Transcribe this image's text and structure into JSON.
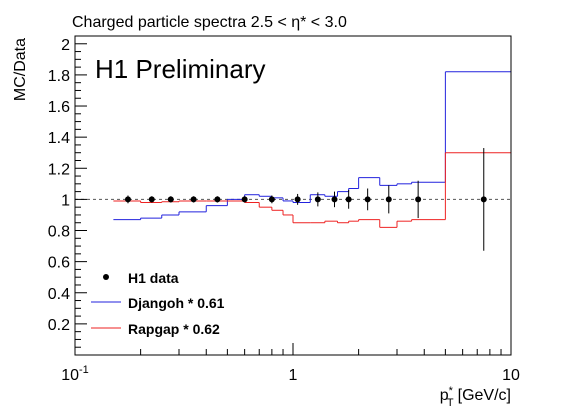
{
  "chart_data": {
    "type": "line",
    "title": "Charged particle spectra 2.5 < η* < 3.0",
    "annotation": "H1 Preliminary",
    "ylabel": "MC/Data",
    "xlabel_main": "p",
    "xlabel_sup": "*",
    "xlabel_sub": "T",
    "xlabel_unit": "[GeV/c]",
    "xscale": "log",
    "xlim": [
      0.1,
      10
    ],
    "ylim": [
      0,
      2.05
    ],
    "grid": false,
    "reference_line": 1,
    "legend_position": "bottom-left",
    "x_ticks": [
      {
        "value": 0.1,
        "base": "10",
        "exp": "-1"
      },
      {
        "value": 1,
        "base": "1",
        "exp": ""
      },
      {
        "value": 10,
        "base": "10",
        "exp": ""
      }
    ],
    "y_ticks": [
      {
        "value": 0.2,
        "label": "0.2"
      },
      {
        "value": 0.4,
        "label": "0.4"
      },
      {
        "value": 0.6,
        "label": "0.6"
      },
      {
        "value": 0.8,
        "label": "0.8"
      },
      {
        "value": 1.0,
        "label": "1"
      },
      {
        "value": 1.2,
        "label": "1.2"
      },
      {
        "value": 1.4,
        "label": "1.4"
      },
      {
        "value": 1.6,
        "label": "1.6"
      },
      {
        "value": 1.8,
        "label": "1.8"
      },
      {
        "value": 2.0,
        "label": "2"
      }
    ],
    "bin_edges": [
      0.15,
      0.2,
      0.25,
      0.3,
      0.4,
      0.5,
      0.6,
      0.7,
      0.8,
      0.9,
      1.0,
      1.2,
      1.4,
      1.6,
      1.8,
      2.0,
      2.5,
      3.0,
      3.5,
      5.0,
      10.0
    ],
    "series": [
      {
        "name": "H1 data",
        "kind": "points",
        "color": "#000000",
        "x": [
          0.175,
          0.225,
          0.275,
          0.35,
          0.45,
          0.6,
          0.8,
          1.05,
          1.3,
          1.55,
          1.8,
          2.2,
          2.75,
          3.75,
          7.5
        ],
        "y": [
          1,
          1,
          1,
          1,
          1,
          1,
          1,
          1,
          1,
          1,
          1,
          1,
          1,
          1,
          1
        ],
        "yerr": [
          0.025,
          0.02,
          0.02,
          0.02,
          0.02,
          0.02,
          0.025,
          0.035,
          0.045,
          0.05,
          0.06,
          0.07,
          0.09,
          0.12,
          0.33
        ]
      },
      {
        "name": "Djangoh * 0.61",
        "kind": "step",
        "color": "#2222dd",
        "values": [
          0.87,
          0.88,
          0.9,
          0.92,
          0.96,
          1.0,
          1.03,
          1.02,
          1.01,
          0.99,
          0.98,
          1.03,
          1.02,
          1.05,
          1.07,
          1.14,
          1.09,
          1.1,
          1.11,
          1.82
        ]
      },
      {
        "name": "Rapgap * 0.62",
        "kind": "step",
        "color": "#ee2222",
        "values": [
          0.99,
          0.98,
          0.985,
          0.99,
          0.99,
          0.99,
          0.98,
          0.95,
          0.93,
          0.9,
          0.85,
          0.85,
          0.86,
          0.85,
          0.86,
          0.87,
          0.82,
          0.86,
          0.87,
          1.3
        ]
      }
    ]
  }
}
